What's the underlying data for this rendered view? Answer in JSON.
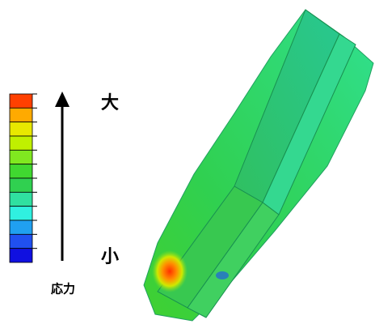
{
  "legend": {
    "max_label": "大",
    "min_label": "小",
    "title": "応力",
    "colors": [
      "#ff4000",
      "#ffaa00",
      "#e8e800",
      "#c0f000",
      "#80e820",
      "#40d830",
      "#30d050",
      "#30e0a0",
      "#30f0e0",
      "#20a0f0",
      "#2050f0",
      "#1010e0"
    ]
  }
}
